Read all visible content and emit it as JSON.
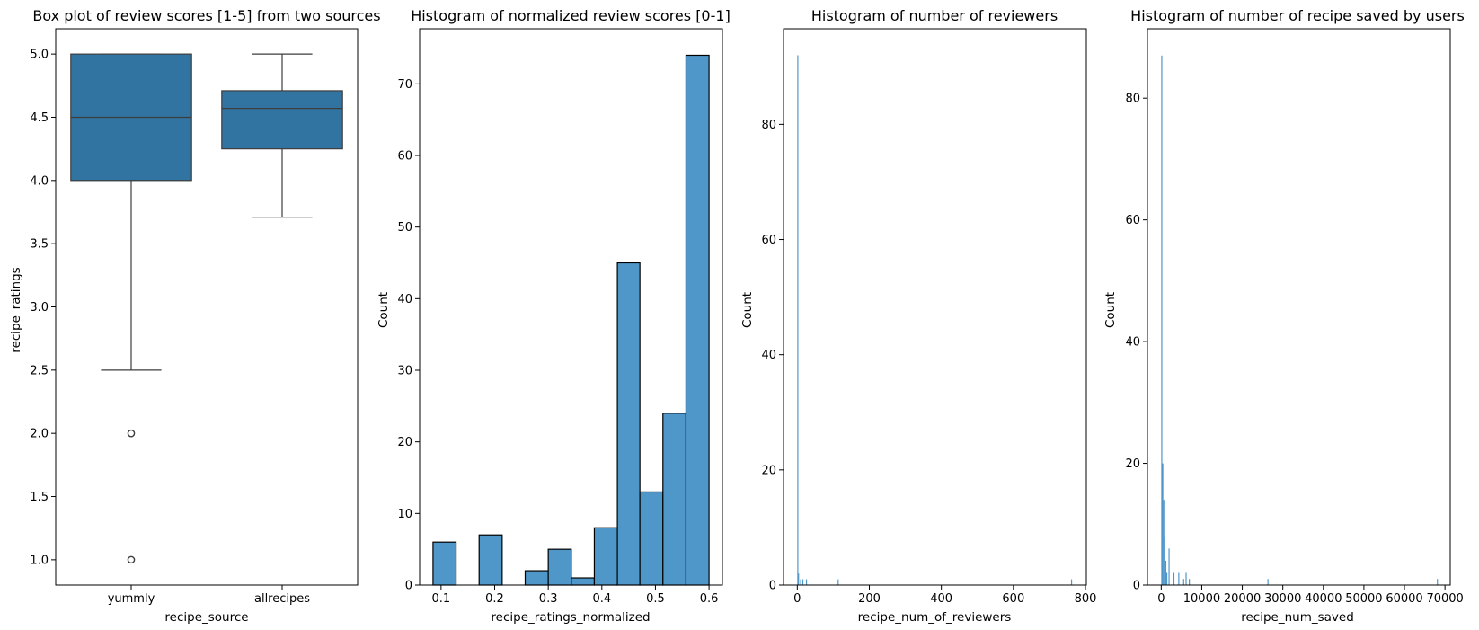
{
  "colors": {
    "box_fill": "#3274a1",
    "hist_fill": "#5097c9",
    "edge": "#000000",
    "whisker": "#3d3d3d"
  },
  "chart_data": [
    {
      "type": "box",
      "title": "Box plot of review scores [1-5] from two sources",
      "xlabel": "recipe_source",
      "ylabel": "recipe_ratings",
      "categories": [
        "yummly",
        "allrecipes"
      ],
      "ylim": [
        0.8,
        5.2
      ],
      "yticks": [
        1.0,
        1.5,
        2.0,
        2.5,
        3.0,
        3.5,
        4.0,
        4.5,
        5.0
      ],
      "boxes": [
        {
          "name": "yummly",
          "whislo": 2.5,
          "q1": 4.0,
          "median": 4.5,
          "q3": 5.0,
          "whishi": 5.0,
          "fliers": [
            2.0,
            1.0
          ]
        },
        {
          "name": "allrecipes",
          "whislo": 3.71,
          "q1": 4.25,
          "median": 4.57,
          "q3": 4.71,
          "whishi": 5.0,
          "fliers": []
        }
      ]
    },
    {
      "type": "bar",
      "title": "Histogram of normalized review scores [0-1]",
      "xlabel": "recipe_ratings_normalized",
      "ylabel": "Count",
      "xlim": [
        0.06,
        0.625
      ],
      "ylim": [
        0,
        77.7
      ],
      "xticks": [
        0.1,
        0.2,
        0.3,
        0.4,
        0.5,
        0.6
      ],
      "yticks": [
        0,
        10,
        20,
        30,
        40,
        50,
        60,
        70
      ],
      "bins": [
        {
          "x0": 0.085,
          "x1": 0.128,
          "count": 6
        },
        {
          "x0": 0.171,
          "x1": 0.214,
          "count": 7
        },
        {
          "x0": 0.257,
          "x1": 0.3,
          "count": 2
        },
        {
          "x0": 0.3,
          "x1": 0.343,
          "count": 5
        },
        {
          "x0": 0.343,
          "x1": 0.386,
          "count": 1
        },
        {
          "x0": 0.386,
          "x1": 0.429,
          "count": 8
        },
        {
          "x0": 0.429,
          "x1": 0.471,
          "count": 45
        },
        {
          "x0": 0.471,
          "x1": 0.514,
          "count": 13
        },
        {
          "x0": 0.514,
          "x1": 0.557,
          "count": 24
        },
        {
          "x0": 0.557,
          "x1": 0.6,
          "count": 74
        }
      ]
    },
    {
      "type": "bar",
      "title": "Histogram of number of reviewers",
      "xlabel": "recipe_num_of_reviewers",
      "ylabel": "Count",
      "xlim": [
        -38.2,
        802.5
      ],
      "ylim": [
        0,
        96.6
      ],
      "xticks": [
        0,
        200,
        400,
        600,
        800
      ],
      "yticks": [
        0,
        20,
        40,
        60,
        80
      ],
      "bins": [
        {
          "x0": 0,
          "x1": 2,
          "count": 92
        },
        {
          "x0": 2,
          "x1": 4,
          "count": 2
        },
        {
          "x0": 8,
          "x1": 10,
          "count": 1
        },
        {
          "x0": 14,
          "x1": 16,
          "count": 1
        },
        {
          "x0": 24,
          "x1": 26,
          "count": 1
        },
        {
          "x0": 112,
          "x1": 114,
          "count": 1
        },
        {
          "x0": 760,
          "x1": 762,
          "count": 1
        }
      ]
    },
    {
      "type": "bar",
      "title": "Histogram of number of recipe saved by users",
      "xlabel": "recipe_num_saved",
      "ylabel": "Count",
      "xlim": [
        -3400,
        71300
      ],
      "ylim": [
        0,
        91.4
      ],
      "xticks": [
        0,
        10000,
        20000,
        30000,
        40000,
        50000,
        60000,
        70000
      ],
      "yticks": [
        0,
        20,
        40,
        60,
        80
      ],
      "bins": [
        {
          "x0": 0,
          "x1": 250,
          "count": 87
        },
        {
          "x0": 250,
          "x1": 500,
          "count": 20
        },
        {
          "x0": 500,
          "x1": 750,
          "count": 14
        },
        {
          "x0": 750,
          "x1": 1000,
          "count": 8
        },
        {
          "x0": 1000,
          "x1": 1250,
          "count": 4
        },
        {
          "x0": 1250,
          "x1": 1500,
          "count": 2
        },
        {
          "x0": 1800,
          "x1": 2050,
          "count": 6
        },
        {
          "x0": 3000,
          "x1": 3250,
          "count": 2
        },
        {
          "x0": 4200,
          "x1": 4450,
          "count": 2
        },
        {
          "x0": 5400,
          "x1": 5650,
          "count": 1
        },
        {
          "x0": 6000,
          "x1": 6250,
          "count": 2
        },
        {
          "x0": 6800,
          "x1": 7050,
          "count": 1
        },
        {
          "x0": 26200,
          "x1": 26450,
          "count": 1
        },
        {
          "x0": 68000,
          "x1": 68250,
          "count": 1
        }
      ]
    }
  ]
}
